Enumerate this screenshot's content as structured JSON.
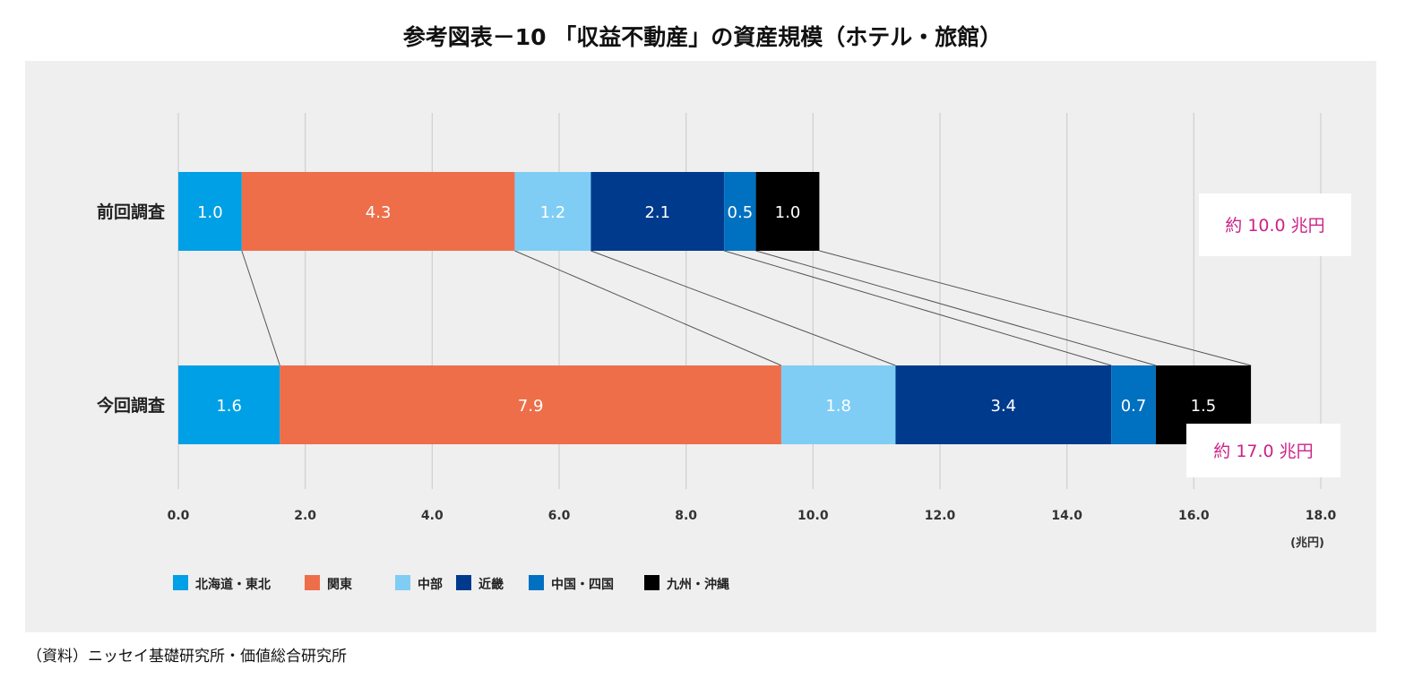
{
  "title": "参考図表－10 「収益不動産」の資産規模（ホテル・旅館）",
  "source": "（資料）ニッセイ基礎研究所・価値総合研究所",
  "chart_data": {
    "type": "bar",
    "orientation": "horizontal",
    "stacked": true,
    "categories": [
      "前回調査",
      "今回調査"
    ],
    "series": [
      {
        "name": "北海道・東北",
        "values": [
          1.0,
          1.6
        ],
        "color": "#00a0e6"
      },
      {
        "name": "関東",
        "values": [
          4.3,
          7.9
        ],
        "color": "#ee6e4a"
      },
      {
        "name": "中部",
        "values": [
          1.2,
          1.8
        ],
        "color": "#7fcdf5"
      },
      {
        "name": "近畿",
        "values": [
          2.1,
          3.4
        ],
        "color": "#003a8c"
      },
      {
        "name": "中国・四国",
        "values": [
          0.5,
          0.7
        ],
        "color": "#0070c0"
      },
      {
        "name": "九州・沖縄",
        "values": [
          1.0,
          1.5
        ],
        "color": "#000000"
      }
    ],
    "totals": [
      "約 10.0 兆円",
      "約 17.0 兆円"
    ],
    "xlim": [
      0,
      18
    ],
    "xticks": [
      "0.0",
      "2.0",
      "4.0",
      "6.0",
      "8.0",
      "10.0",
      "12.0",
      "14.0",
      "16.0",
      "18.0"
    ],
    "xlabel": "(兆円)",
    "grid": true,
    "legend_position": "bottom-left",
    "total_label_color": "#cc2288"
  }
}
